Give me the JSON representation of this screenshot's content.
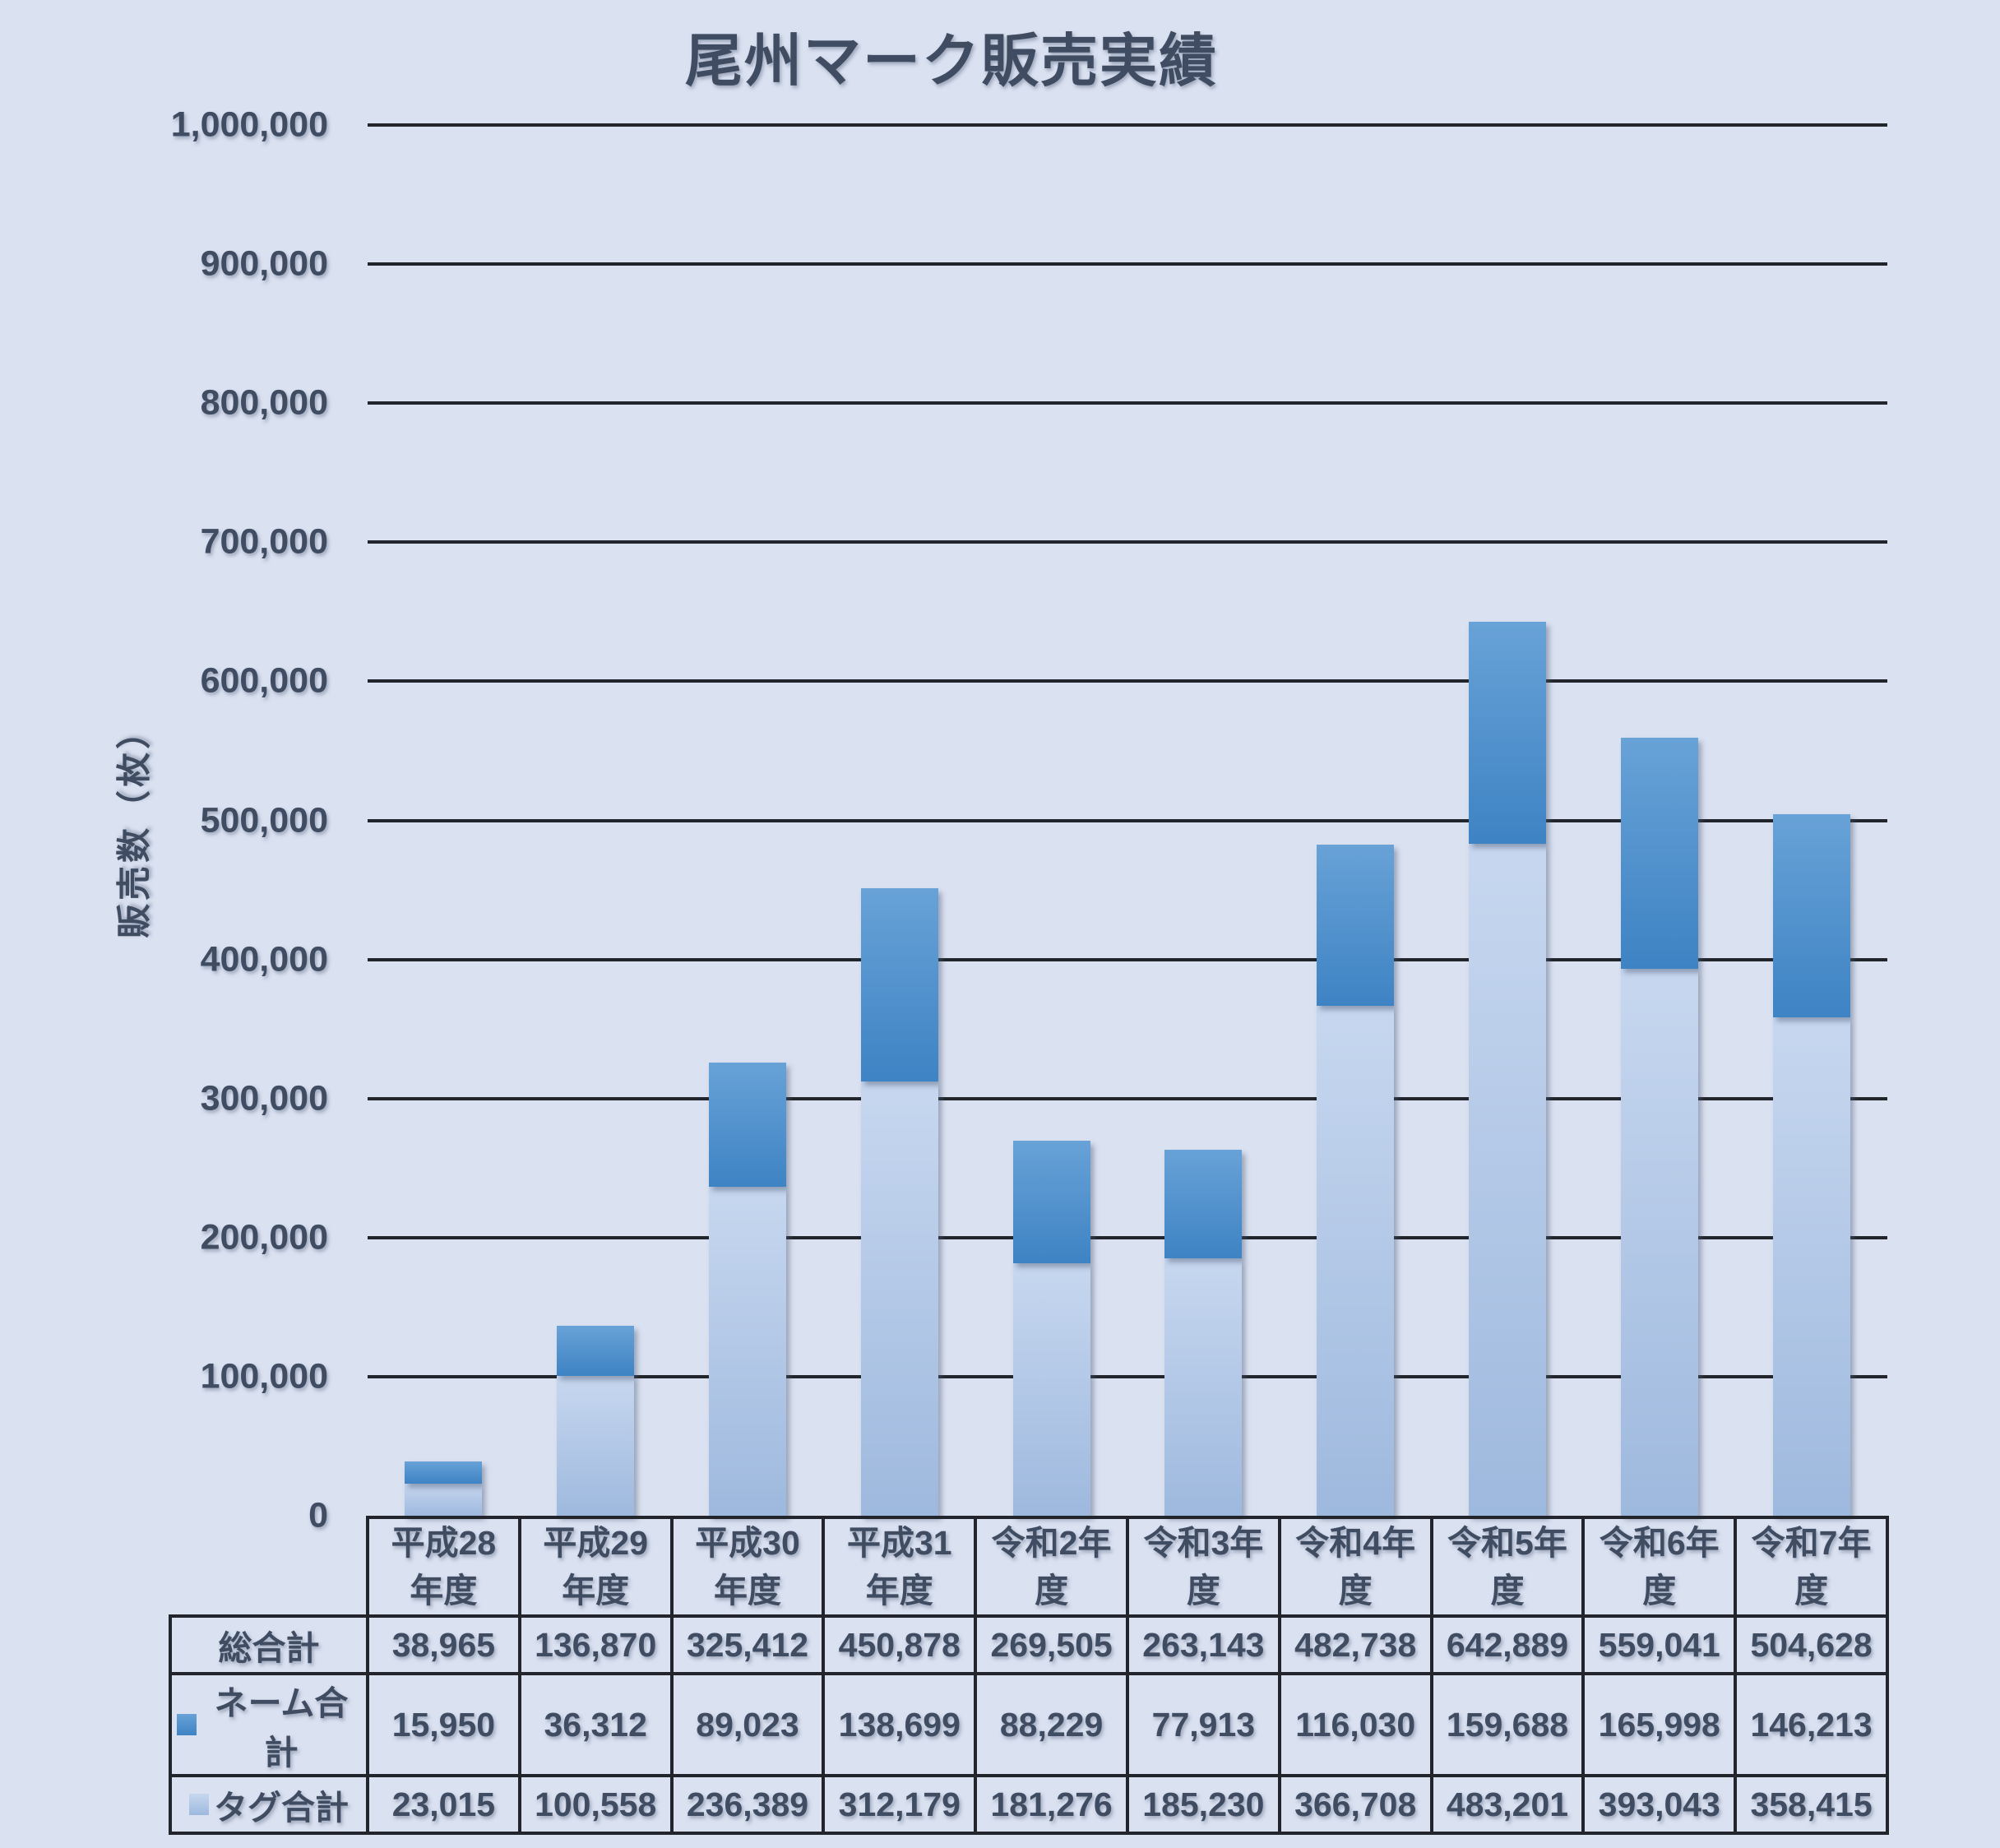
{
  "page": {
    "background_color": "#dae1f1",
    "text_color": "#3f4c62",
    "grid_color": "#22262c"
  },
  "chart_data": {
    "type": "bar",
    "stacked": true,
    "title": "尾州マーク販売実績",
    "ylabel": "販売数（枚）",
    "xlabel": "",
    "ylim": [
      0,
      1000000
    ],
    "ytick_step": 100000,
    "grid": true,
    "legend_position": "table-left",
    "categories": [
      "平成28年度",
      "平成29年度",
      "平成30年度",
      "平成31年度",
      "令和2年度",
      "令和3年度",
      "令和4年度",
      "令和5年度",
      "令和6年度",
      "令和7年度"
    ],
    "category_header_lines": [
      "平成28\n年度",
      "平成29\n年度",
      "平成30\n年度",
      "平成31\n年度",
      "令和2年\n度",
      "令和3年\n度",
      "令和4年\n度",
      "令和5年\n度",
      "令和6年\n度",
      "令和7年\n度"
    ],
    "series": [
      {
        "name": "ネーム合計",
        "key": "name",
        "color_top": "#68a2d7",
        "color_bottom": "#3e83c4",
        "values": [
          15950,
          36312,
          89023,
          138699,
          88229,
          77913,
          116030,
          159688,
          165998,
          146213
        ]
      },
      {
        "name": "タグ合計",
        "key": "tag",
        "color_top": "#c7d7ef",
        "color_bottom": "#9eb9de",
        "values": [
          23015,
          100558,
          236389,
          312179,
          181276,
          185230,
          366708,
          483201,
          393043,
          358415
        ]
      }
    ],
    "totals": {
      "name": "総合計",
      "values": [
        38965,
        136870,
        325412,
        450878,
        269505,
        263143,
        482738,
        642889,
        559041,
        504628
      ]
    }
  }
}
